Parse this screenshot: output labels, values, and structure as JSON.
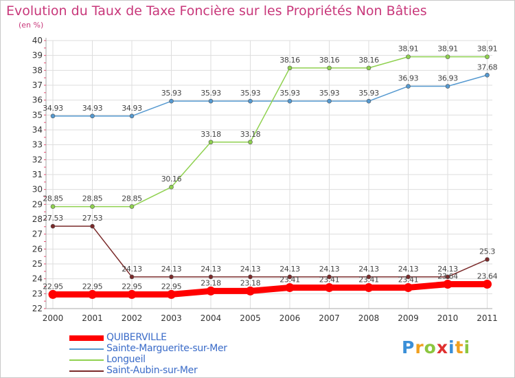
{
  "chart_data": {
    "type": "line",
    "title": "Evolution du Taux de Taxe Foncière sur les Propriétés Non Bâties",
    "unit_label": "(en %)",
    "xlabel": "",
    "ylabel": "",
    "categories": [
      "2000",
      "2001",
      "2002",
      "2003",
      "2004",
      "2005",
      "2006",
      "2007",
      "2008",
      "2009",
      "2010",
      "2011"
    ],
    "ylim": [
      22,
      40
    ],
    "yticks": [
      22,
      23,
      24,
      25,
      26,
      27,
      28,
      29,
      30,
      31,
      32,
      33,
      34,
      35,
      36,
      37,
      38,
      39,
      40
    ],
    "grid": true,
    "series": [
      {
        "name": "QUIBERVILLE",
        "color": "#ff0000",
        "values": [
          22.95,
          22.95,
          22.95,
          22.95,
          23.18,
          23.18,
          23.41,
          23.41,
          23.41,
          23.41,
          23.64,
          23.64
        ],
        "labels": [
          "22.95",
          "22.95",
          "22.95",
          "22.95",
          "23.18",
          "23.18",
          "23.41",
          "23.41",
          "23.41",
          "23.41",
          "23.64",
          "23.64"
        ]
      },
      {
        "name": "Sainte-Marguerite-sur-Mer",
        "color": "#5599d0",
        "values": [
          34.93,
          34.93,
          34.93,
          35.93,
          35.93,
          35.93,
          35.93,
          35.93,
          35.93,
          36.93,
          36.93,
          37.68
        ],
        "labels": [
          "34.93",
          "34.93",
          "34.93",
          "35.93",
          "35.93",
          "35.93",
          "35.93",
          "35.93",
          "35.93",
          "36.93",
          "36.93",
          "37.68"
        ]
      },
      {
        "name": "Longueil",
        "color": "#8fd14f",
        "values": [
          28.85,
          28.85,
          28.85,
          30.16,
          33.18,
          33.18,
          38.16,
          38.16,
          38.16,
          38.91,
          38.91,
          38.91
        ],
        "labels": [
          "28.85",
          "28.85",
          "28.85",
          "30.16",
          "33.18",
          "33.18",
          "38.16",
          "38.16",
          "38.16",
          "38.91",
          "38.91",
          "38.91"
        ]
      },
      {
        "name": "Saint-Aubin-sur-Mer",
        "color": "#7a2a2a",
        "values": [
          27.53,
          27.53,
          24.13,
          24.13,
          24.13,
          24.13,
          24.13,
          24.13,
          24.13,
          24.13,
          24.13,
          25.3
        ],
        "labels": [
          "27.53",
          "27.53",
          "24.13",
          "24.13",
          "24.13",
          "24.13",
          "24.13",
          "24.13",
          "24.13",
          "24.13",
          "24.13",
          "25.3"
        ]
      }
    ]
  },
  "legend": [
    {
      "label": "QUIBERVILLE",
      "color": "#ff0000"
    },
    {
      "label": "Sainte-Marguerite-sur-Mer",
      "color": "#5599d0"
    },
    {
      "label": "Longueil",
      "color": "#8fd14f"
    },
    {
      "label": "Saint-Aubin-sur-Mer",
      "color": "#7a2a2a"
    }
  ],
  "brand": {
    "letters": [
      "P",
      "r",
      "o",
      "x",
      "i",
      "t",
      "i"
    ],
    "colors": [
      "#3a8fd8",
      "#f0a020",
      "#8cc63f",
      "#e03030",
      "#3a8fd8",
      "#f0a020",
      "#8cc63f"
    ]
  }
}
